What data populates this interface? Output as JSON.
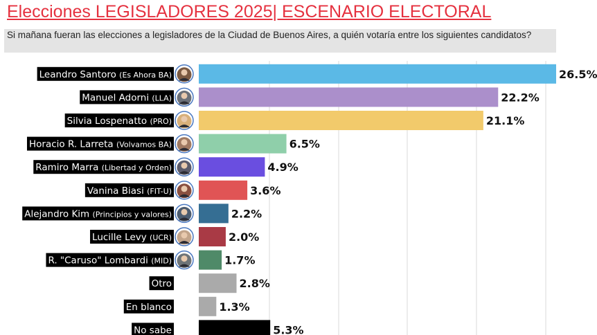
{
  "header": {
    "title": "Elecciones LEGISLADORES 2025| ESCENARIO ELECTORAL",
    "subtitle": "Si mañana fueran las elecciones a legisladores de la Ciudad de Buenos Aires, a quién votaría entre los siguientes candidatos?"
  },
  "chart_data": {
    "type": "bar",
    "orientation": "horizontal",
    "title": "Elecciones LEGISLADORES 2025| ESCENARIO ELECTORAL",
    "value_suffix": "%",
    "grid": true,
    "xlim": [
      0,
      26.5
    ],
    "categories": [
      {
        "name": "Leandro Santoro",
        "party": "(Es Ahora BA)",
        "value": 26.5,
        "label": "26.5%",
        "color": "#5bb9e6",
        "avatar": true
      },
      {
        "name": "Manuel Adorni",
        "party": "(LLA)",
        "value": 22.2,
        "label": "22.2%",
        "color": "#ab8fcb",
        "avatar": true
      },
      {
        "name": "Silvia Lospenatto",
        "party": "(PRO)",
        "value": 21.1,
        "label": "21.1%",
        "color": "#f2ca6b",
        "avatar": true
      },
      {
        "name": "Horacio R. Larreta",
        "party": "(Volvamos BA)",
        "value": 6.5,
        "label": "6.5%",
        "color": "#8fcfaa",
        "avatar": true
      },
      {
        "name": "Ramiro Marra",
        "party": "(Libertad y Orden)",
        "value": 4.9,
        "label": "4.9%",
        "color": "#6a4ee0",
        "avatar": true
      },
      {
        "name": "Vanina Biasi",
        "party": "(FIT-U)",
        "value": 3.6,
        "label": "3.6%",
        "color": "#e05455",
        "avatar": true
      },
      {
        "name": "Alejandro Kim",
        "party": "(Principios y valores)",
        "value": 2.2,
        "label": "2.2%",
        "color": "#356e93",
        "avatar": true
      },
      {
        "name": "Lucille Levy",
        "party": "(UCR)",
        "value": 2.0,
        "label": "2.0%",
        "color": "#a93a45",
        "avatar": true
      },
      {
        "name": "R. \"Caruso\" Lombardi",
        "party": "(MID)",
        "value": 1.7,
        "label": "1.7%",
        "color": "#4f8a68",
        "avatar": true
      },
      {
        "name": "Otro",
        "party": "",
        "value": 2.8,
        "label": "2.8%",
        "color": "#aaaaaa",
        "avatar": false
      },
      {
        "name": "En blanco",
        "party": "",
        "value": 1.3,
        "label": "1.3%",
        "color": "#aaaaaa",
        "avatar": false
      },
      {
        "name": "No sabe",
        "party": "",
        "value": 5.3,
        "label": "5.3%",
        "color": "#000000",
        "avatar": false
      }
    ]
  }
}
